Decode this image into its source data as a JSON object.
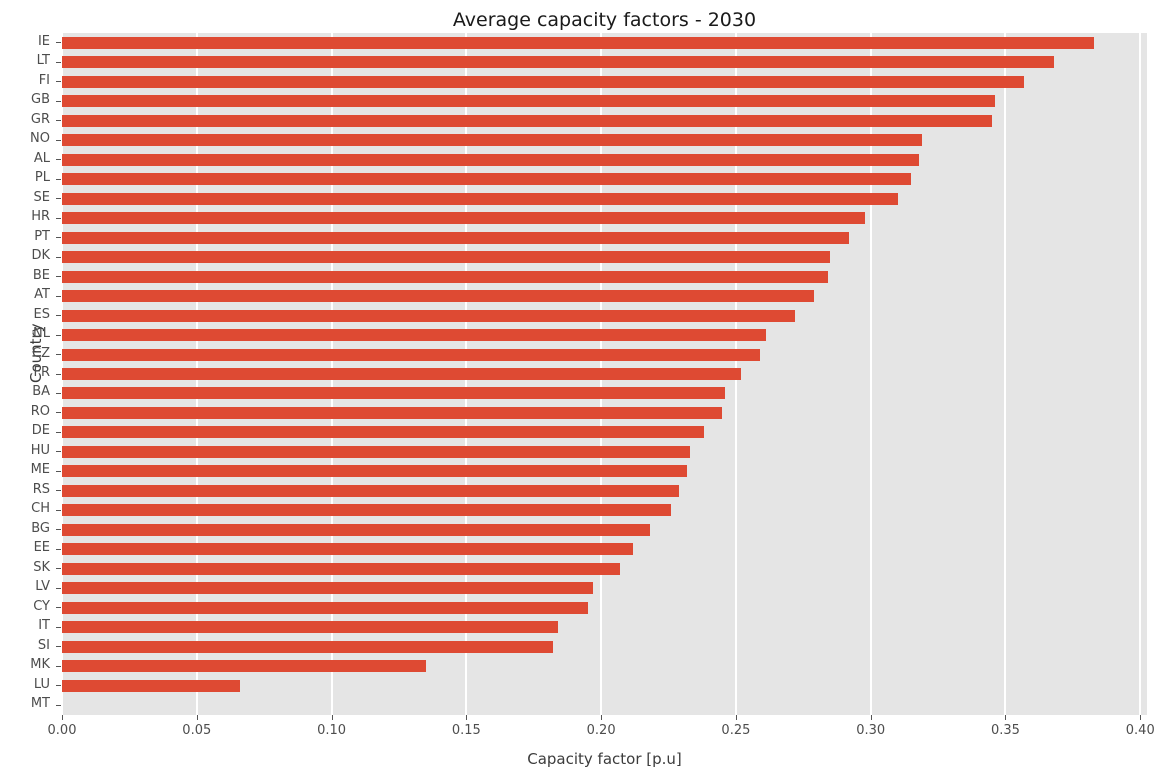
{
  "chart_data": {
    "type": "bar",
    "orientation": "horizontal",
    "title": "Average capacity factors - 2030",
    "xlabel": "Capacity factor [p.u]",
    "ylabel": "Country",
    "categories": [
      "IE",
      "LT",
      "FI",
      "GB",
      "GR",
      "NO",
      "AL",
      "PL",
      "SE",
      "HR",
      "PT",
      "DK",
      "BE",
      "AT",
      "ES",
      "NL",
      "CZ",
      "FR",
      "BA",
      "RO",
      "DE",
      "HU",
      "ME",
      "RS",
      "CH",
      "BG",
      "EE",
      "SK",
      "LV",
      "CY",
      "IT",
      "SI",
      "MK",
      "LU",
      "MT"
    ],
    "values": [
      0.383,
      0.368,
      0.357,
      0.346,
      0.345,
      0.319,
      0.318,
      0.315,
      0.31,
      0.298,
      0.292,
      0.285,
      0.284,
      0.279,
      0.272,
      0.261,
      0.259,
      0.252,
      0.246,
      0.245,
      0.238,
      0.233,
      0.232,
      0.229,
      0.226,
      0.218,
      0.212,
      0.207,
      0.197,
      0.195,
      0.184,
      0.182,
      0.135,
      0.066,
      0.0
    ],
    "xlim": [
      0,
      0.4025
    ],
    "xticks": [
      0.0,
      0.05,
      0.1,
      0.15,
      0.2,
      0.25,
      0.3,
      0.35,
      0.4
    ],
    "xtick_labels": [
      "0.00",
      "0.05",
      "0.10",
      "0.15",
      "0.20",
      "0.25",
      "0.30",
      "0.35",
      "0.40"
    ],
    "grid": true,
    "legend": "none",
    "bar_color": "#de4a33",
    "plot_background_color": "#e5e5e5",
    "grid_color": "#ffffff",
    "tick_label_color": "#4d4d4d",
    "title_color": "#1a1a1a",
    "axis_label_color": "#3c3c3c"
  }
}
